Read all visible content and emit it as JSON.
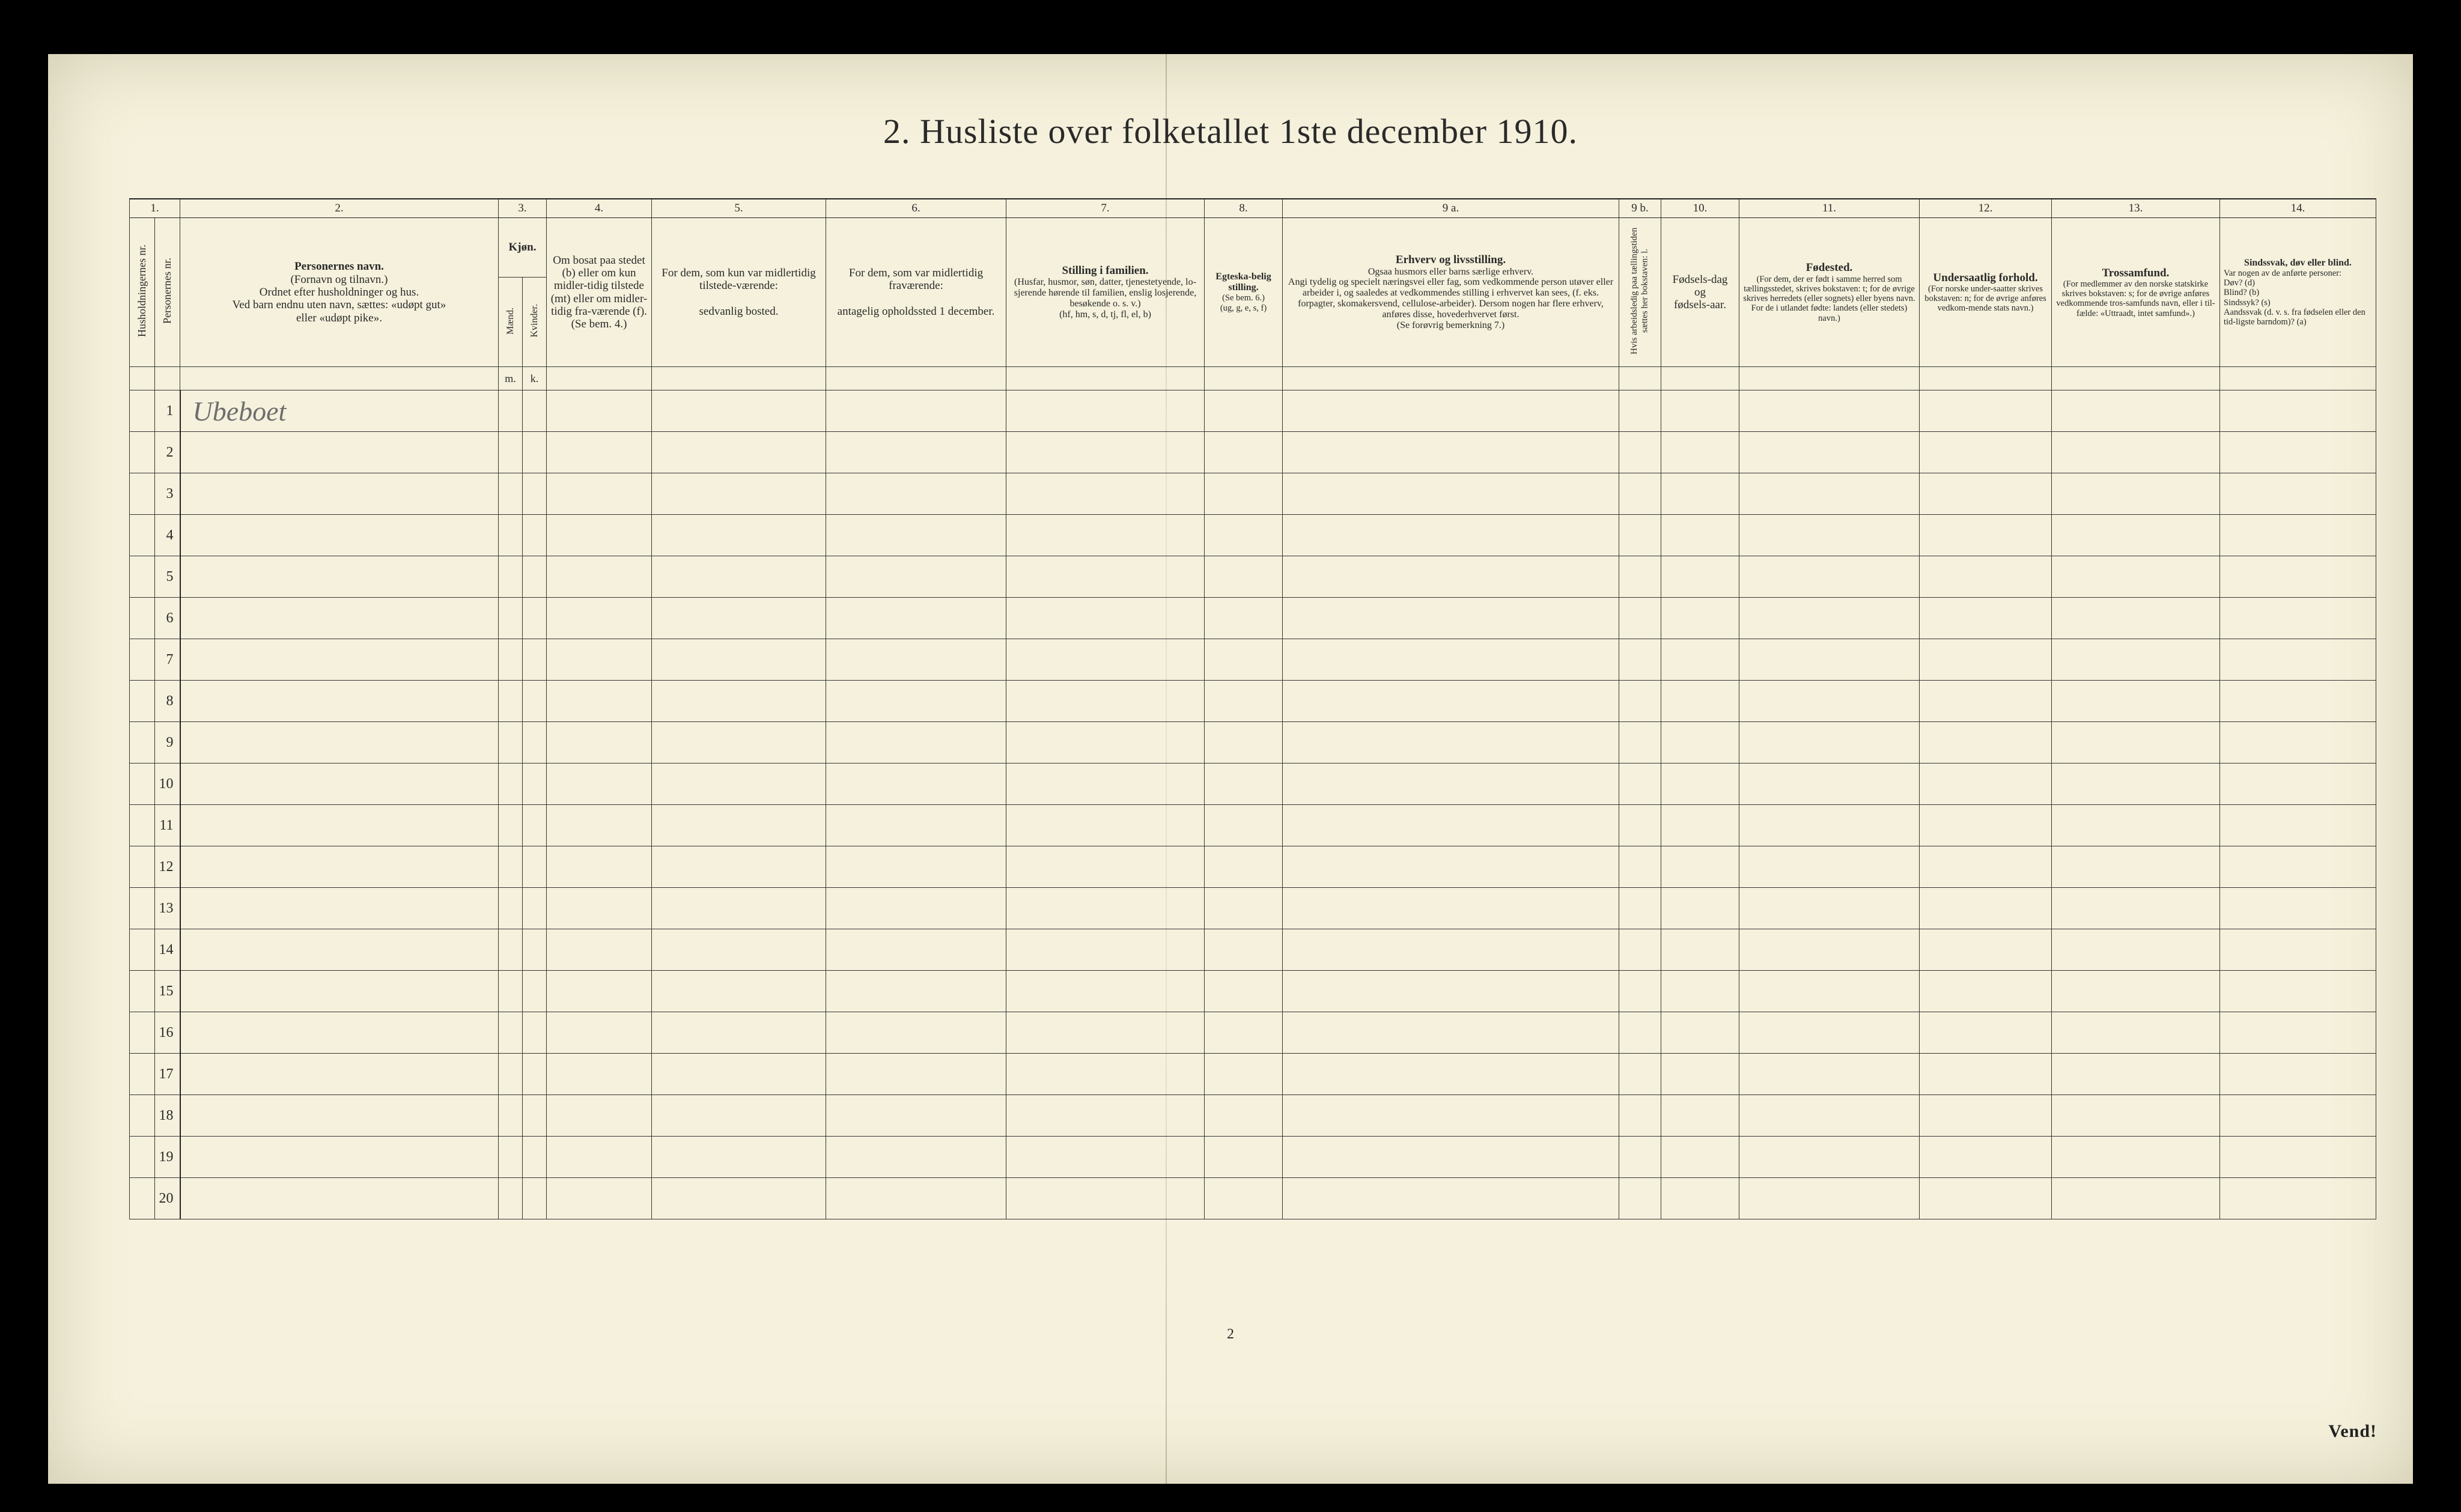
{
  "title": "2.  Husliste over folketallet 1ste december 1910.",
  "page_number": "2",
  "footer_right": "Vend!",
  "handwritten_row1": "Ubeboet",
  "row_count": 20,
  "colors": {
    "paper": "#f5f1dc",
    "ink": "#2a2a2a",
    "rule": "#353535",
    "background": "#000000",
    "handwriting": "#6e6e6e"
  },
  "colnums": [
    "1.",
    "2.",
    "3.",
    "4.",
    "5.",
    "6.",
    "7.",
    "8.",
    "9 a.",
    "9 b.",
    "10.",
    "11.",
    "12.",
    "13.",
    "14."
  ],
  "headers": {
    "c1a": "Husholdningernes nr.",
    "c1b": "Personernes nr.",
    "c2_title": "Personernes navn.",
    "c2_l1": "(Fornavn og tilnavn.)",
    "c2_l2": "Ordnet efter husholdninger og hus.",
    "c2_l3": "Ved barn endnu uten navn, sættes: «udøpt gut»",
    "c2_l4": "eller «udøpt pike».",
    "c3_title": "Kjøn.",
    "c3a_sub": "Mænd.",
    "c3b_sub": "Kvinder.",
    "c3a_bottom": "m.",
    "c3b_bottom": "k.",
    "c4": "Om bosat paa stedet (b) eller om kun midler-tidig tilstede (mt) eller om midler-tidig fra-værende (f). (Se bem. 4.)",
    "c5": "For dem, som kun var midlertidig tilstede-værende:\n\nsedvanlig bosted.",
    "c6": "For dem, som var midlertidig fraværende:\n\nantagelig opholdssted 1 december.",
    "c7_title": "Stilling i familien.",
    "c7_body": "(Husfar, husmor, søn, datter, tjenestetyende, lo-sjerende hørende til familien, enslig losjerende, besøkende o. s. v.)\n(hf, hm, s, d, tj, fl, el, b)",
    "c8_title": "Egteska-belig stilling.",
    "c8_body": "(Se bem. 6.)\n(ug, g, e, s, f)",
    "c9a_title": "Erhverv og livsstilling.",
    "c9a_body": "Ogsaa husmors eller barns særlige erhverv.\nAngi tydelig og specielt næringsvei eller fag, som vedkommende person utøver eller arbeider i, og saaledes at vedkommendes stilling i erhvervet kan sees, (f. eks. forpagter, skomakersvend, cellulose-arbeider). Dersom nogen har flere erhverv, anføres disse, hovederhvervet først.\n(Se forøvrig bemerkning 7.)",
    "c9b": "Hvis arbeidsledig paa tællingstiden sættes her bokstaven: l.",
    "c10": "Fødsels-dag\nog\nfødsels-aar.",
    "c11_title": "Fødested.",
    "c11_body": "(For dem, der er født i samme herred som tællingsstedet, skrives bokstaven: t; for de øvrige skrives herredets (eller sognets) eller byens navn. For de i utlandet fødte: landets (eller stedets) navn.)",
    "c12_title": "Undersaatlig forhold.",
    "c12_body": "(For norske under-saatter skrives bokstaven: n; for de øvrige anføres vedkom-mende stats navn.)",
    "c13_title": "Trossamfund.",
    "c13_body": "(For medlemmer av den norske statskirke skrives bokstaven: s; for de øvrige anføres vedkommende tros-samfunds navn, eller i til-fælde: «Uttraadt, intet samfund».)",
    "c14_title": "Sindssvak, døv eller blind.",
    "c14_body": "Var nogen av de anførte personer:\nDøv?        (d)\nBlind?       (b)\nSindssyk?  (s)\nAandssvak (d. v. s. fra fødselen eller den tid-ligste barndom)?  (a)"
  }
}
